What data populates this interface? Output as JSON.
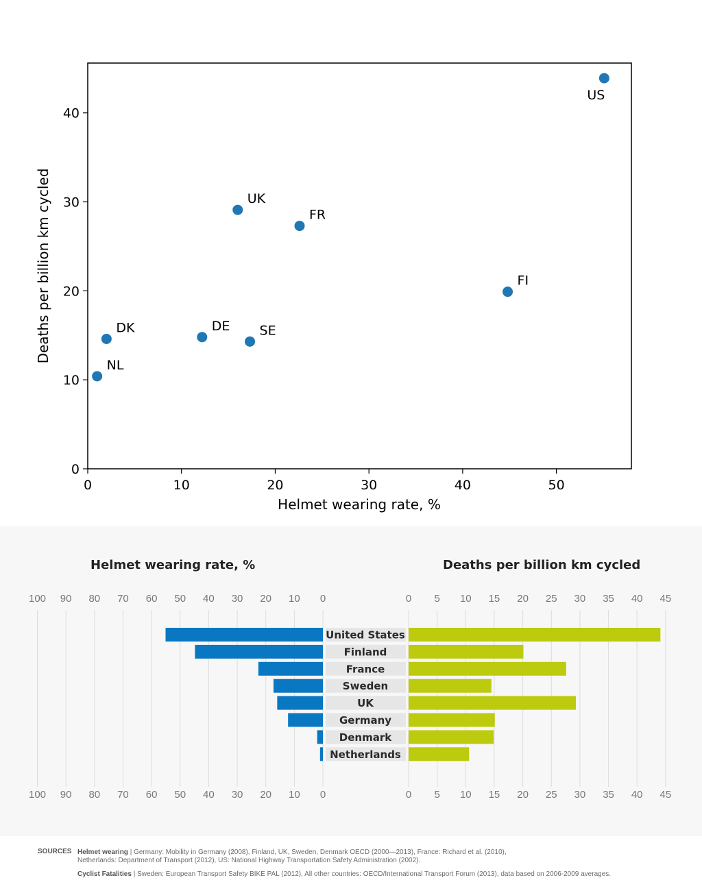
{
  "chart_data": [
    {
      "type": "scatter",
      "xlabel": "Helmet wearing rate, %",
      "ylabel": "Deaths per billion km cycled",
      "xlim": [
        0,
        58
      ],
      "ylim": [
        0,
        45.6
      ],
      "xticks": [
        0,
        10,
        20,
        30,
        40,
        50
      ],
      "yticks": [
        0,
        10,
        20,
        30,
        40
      ],
      "grid": false,
      "color": "#1f77b4",
      "points": [
        {
          "label": "NL",
          "x": 1,
          "y": 10.4
        },
        {
          "label": "DK",
          "x": 2,
          "y": 14.6
        },
        {
          "label": "DE",
          "x": 12.2,
          "y": 14.8
        },
        {
          "label": "SE",
          "x": 17.3,
          "y": 14.3
        },
        {
          "label": "UK",
          "x": 16,
          "y": 29.1
        },
        {
          "label": "FR",
          "x": 22.6,
          "y": 27.3
        },
        {
          "label": "FI",
          "x": 44.8,
          "y": 19.9
        },
        {
          "label": "US",
          "x": 55.1,
          "y": 43.9
        }
      ]
    },
    {
      "type": "bar",
      "orientation": "horizontal-back-to-back",
      "left_title": "Helmet wearing rate, %",
      "right_title": "Deaths per billion km cycled",
      "left_ticks": [
        100,
        90,
        80,
        70,
        60,
        50,
        40,
        30,
        20,
        10,
        0
      ],
      "right_ticks": [
        0,
        5,
        10,
        15,
        20,
        25,
        30,
        35,
        40,
        45
      ],
      "left_color": "#0a77c2",
      "right_color": "#bccb0e",
      "label_bg": "#e6e6e6",
      "grid": true,
      "categories": [
        "United States",
        "Finland",
        "France",
        "Sweden",
        "UK",
        "Germany",
        "Denmark",
        "Netherlands"
      ],
      "series": [
        {
          "name": "Helmet wearing rate, %",
          "values": [
            55.1,
            44.8,
            22.6,
            17.3,
            16,
            12.2,
            2,
            1
          ]
        },
        {
          "name": "Deaths per billion km cycled",
          "values": [
            44.1,
            20.1,
            27.6,
            14.5,
            29.3,
            15.1,
            14.9,
            10.6
          ]
        }
      ]
    }
  ],
  "sources": {
    "tag": "SOURCES",
    "helmet_label": "Helmet wearing",
    "helmet_text_1": " | Germany: Mobility in Germany (2008), Finland, UK, Sweden, Denmark OECD (2000—2013), France: Richard et al. (2010),",
    "helmet_text_2": "Netherlands: Department of Transport (2012), US: National Highway Transportation Safety Administration (2002).",
    "fatal_label": "Cyclist Fatalities",
    "fatal_text": " | Sweden: European Transport Safety BIKE PAL (2012), All other countries: OECD/International Transport Forum (2013), data based on 2006-2009 averages."
  }
}
